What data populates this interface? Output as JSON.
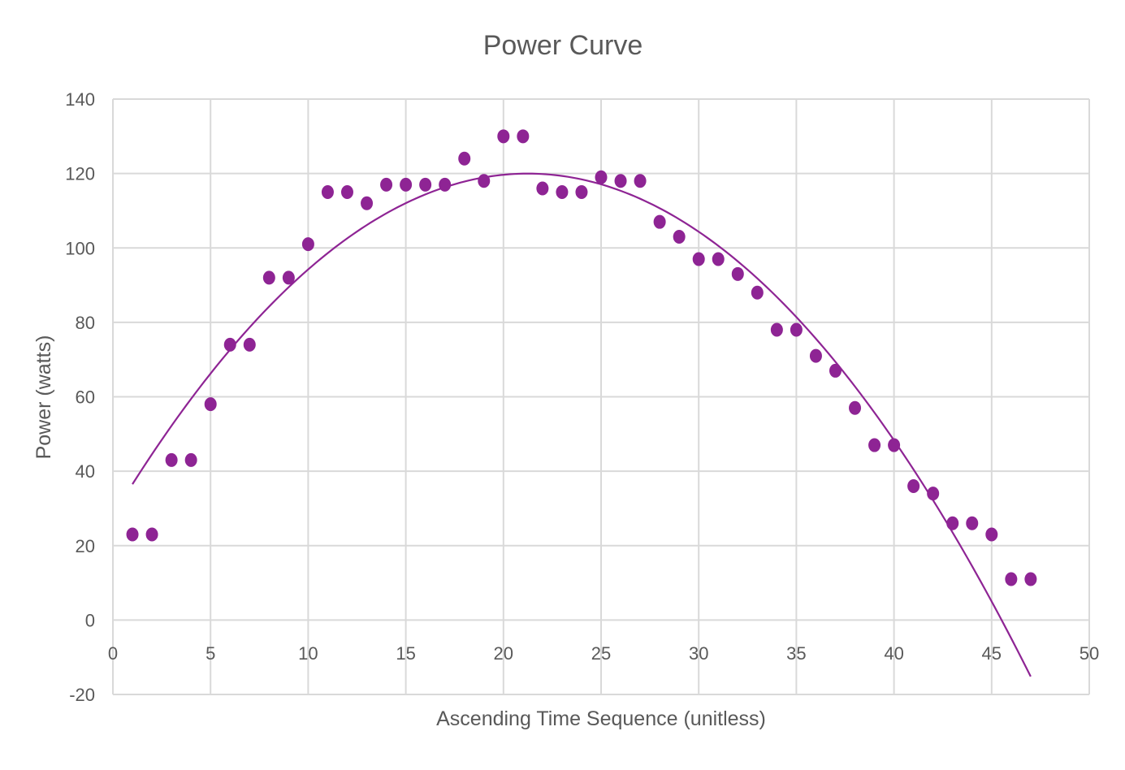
{
  "chart_data": {
    "type": "scatter",
    "title": "Power Curve",
    "xlabel": "Ascending Time Sequence (unitless)",
    "ylabel": "Power (watts)",
    "xlim": [
      0,
      50
    ],
    "ylim": [
      -20,
      140
    ],
    "xticks": [
      0,
      5,
      10,
      15,
      20,
      25,
      30,
      35,
      40,
      45,
      50
    ],
    "yticks": [
      -20,
      0,
      20,
      40,
      60,
      80,
      100,
      120,
      140
    ],
    "grid": true,
    "legend": "none",
    "colors": {
      "points": "#8E2494",
      "trendline": "#8E2494",
      "grid": "#D9D9D9",
      "text": "#595959"
    },
    "series": [
      {
        "x": [
          1,
          2,
          3,
          4,
          5,
          6,
          7,
          8,
          9,
          10,
          11,
          12,
          13,
          14,
          15,
          16,
          17,
          18,
          19,
          20,
          21,
          22,
          23,
          24,
          25,
          26,
          27,
          28,
          29,
          30,
          31,
          32,
          33,
          34,
          35,
          36,
          37,
          38,
          39,
          40,
          41,
          42,
          43,
          44,
          45,
          46,
          47
        ],
        "y": [
          23,
          23,
          43,
          43,
          58,
          74,
          74,
          92,
          92,
          101,
          115,
          115,
          112,
          117,
          117,
          117,
          117,
          124,
          118,
          130,
          130,
          116,
          115,
          115,
          119,
          118,
          118,
          107,
          103,
          97,
          97,
          93,
          88,
          78,
          78,
          71,
          67,
          57,
          47,
          47,
          36,
          34,
          26,
          26,
          23,
          11,
          11
        ]
      }
    ],
    "trendline": {
      "type": "polynomial",
      "order": 2,
      "x_range": [
        1,
        47
      ],
      "coefficients": {
        "a": -0.2037,
        "b": 8.6541,
        "c": 28.06
      }
    }
  }
}
